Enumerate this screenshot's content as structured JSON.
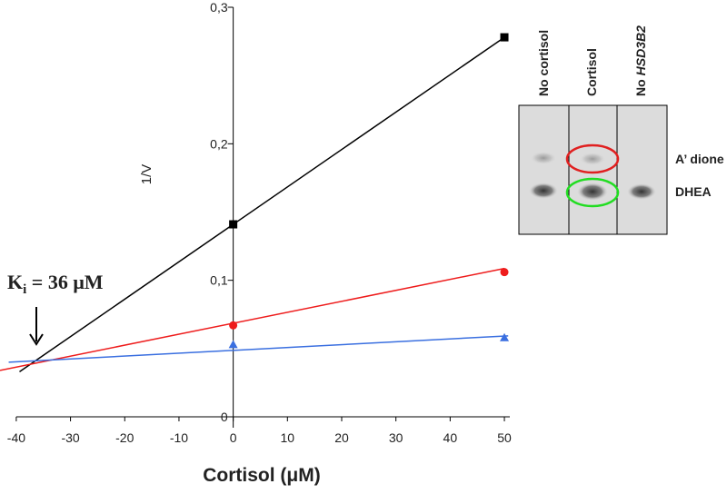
{
  "chart_data": {
    "type": "scatter",
    "x_label": "Cortisol (μM)",
    "y_label": "1/V",
    "x": [
      0,
      50
    ],
    "series": [
      {
        "color": "#000000",
        "marker": "square",
        "values": [
          0.141,
          0.278
        ],
        "fit_x": [
          -39.4,
          50
        ],
        "fit_y": [
          0.033,
          0.278
        ]
      },
      {
        "color": "#ee1c1c",
        "marker": "circle",
        "values": [
          0.067,
          0.106
        ],
        "fit_x": [
          -43,
          50
        ],
        "fit_y": [
          0.034,
          0.1087
        ]
      },
      {
        "color": "#3a6fe0",
        "marker": "triangle",
        "values": [
          0.053,
          0.058
        ],
        "fit_x": [
          -41.4,
          50.7
        ],
        "fit_y": [
          0.04,
          0.0593
        ]
      }
    ],
    "xlim": [
      -43,
      51
    ],
    "xticks": [
      -40,
      -30,
      -20,
      -10,
      0,
      10,
      20,
      30,
      40,
      50
    ],
    "ylim": [
      0,
      0.3
    ],
    "yticks": [
      0,
      {
        "value": 0.1,
        "label": "0,1"
      },
      {
        "value": 0.2,
        "label": "0,2"
      },
      {
        "value": 0.3,
        "label": "0,3"
      }
    ],
    "grid": false,
    "annotation": {
      "main": "K",
      "sub": "i",
      "tail": " = 36 μM"
    }
  },
  "inset": {
    "lanes": [
      {
        "label": "No cortisol"
      },
      {
        "label": "Cortisol"
      },
      {
        "label": "No",
        "gene": "HSD3B2"
      }
    ],
    "bands": [
      "A’ dione",
      "DHEA"
    ]
  }
}
